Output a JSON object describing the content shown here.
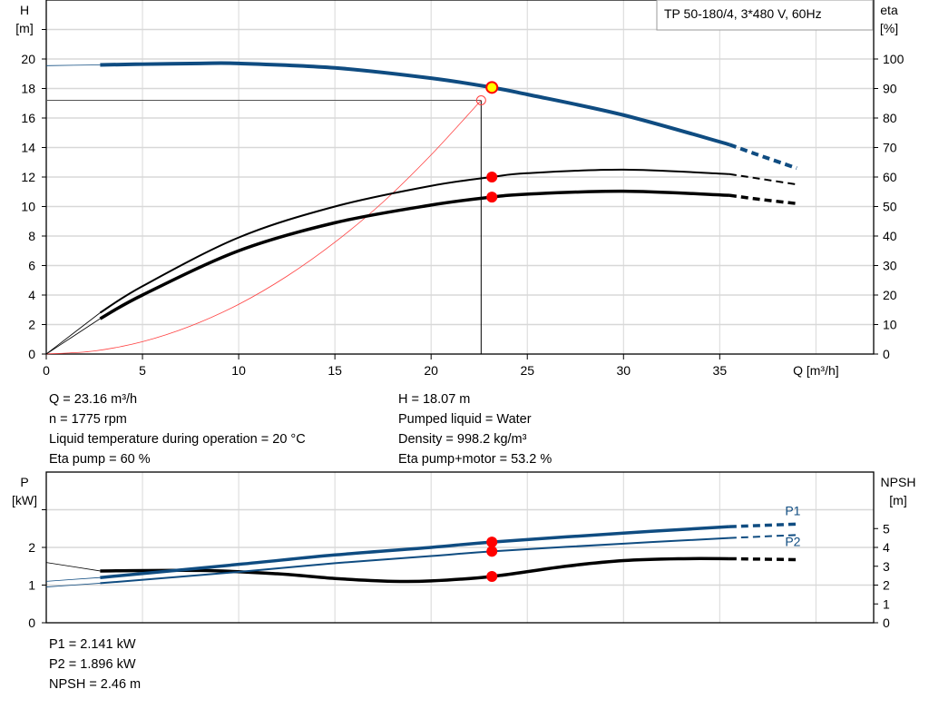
{
  "title": "TP 50-180/4, 3*480 V, 60Hz",
  "top_info_left": [
    "Q = 23.16 m³/h",
    "n = 1775 rpm",
    "Liquid temperature during operation = 20 °C",
    "Eta pump = 60 %"
  ],
  "top_info_right": [
    "H = 18.07 m",
    "Pumped liquid = Water",
    "Density = 998.2 kg/m³",
    "Eta pump+motor = 53.2 %"
  ],
  "bottom_info": [
    "P1 = 2.141 kW",
    "P2 = 1.896 kW",
    "NPSH = 2.46 m"
  ],
  "colors": {
    "head": "#0f4c81",
    "eta": "#000000",
    "system": "#ff4040",
    "duty_point": "#ff0000",
    "duty_point_fill": "#ffff00",
    "grid": "#d8d8d8"
  },
  "chart_data": [
    {
      "type": "line",
      "xlabel": "Q [m³/h]",
      "xlim": [
        0,
        43
      ],
      "xticks": [
        0,
        5,
        10,
        15,
        20,
        25,
        30,
        35
      ],
      "ylabel_left": "H",
      "yunit_left": "[m]",
      "ylim_left": [
        0,
        24
      ],
      "yticks_left": [
        0,
        2,
        4,
        6,
        8,
        10,
        12,
        14,
        16,
        18,
        20
      ],
      "ylabel_right": "eta",
      "yunit_right": "[%]",
      "ylim_right": [
        0,
        120
      ],
      "yticks_right": [
        0,
        10,
        20,
        30,
        40,
        50,
        60,
        70,
        80,
        90,
        100
      ],
      "grid": true,
      "series": [
        {
          "id": "head",
          "axis": "left",
          "x": [
            2.8,
            5,
            8,
            10,
            15,
            20,
            23.16,
            25,
            30,
            35.5
          ],
          "y": [
            19.6,
            19.65,
            19.7,
            19.7,
            19.4,
            18.7,
            18.07,
            17.6,
            16.2,
            14.2
          ],
          "dashed_x": [
            35.5,
            37,
            39
          ],
          "dashed_y": [
            14.2,
            13.5,
            12.6
          ],
          "lead_in": [
            [
              0,
              19.55
            ],
            [
              2.8,
              19.6
            ]
          ]
        },
        {
          "id": "eta_pump",
          "axis": "right",
          "x": [
            2.8,
            5,
            10,
            15,
            20,
            23.16,
            25,
            30,
            35.5
          ],
          "y": [
            14,
            23,
            39.5,
            50,
            57,
            60,
            61.3,
            62.5,
            61
          ],
          "dashed_x": [
            35.5,
            37,
            39
          ],
          "dashed_y": [
            61,
            59.5,
            57.5
          ],
          "lead_in": [
            [
              0,
              0
            ],
            [
              2.8,
              14
            ]
          ]
        },
        {
          "id": "eta_pump_motor",
          "axis": "right",
          "x": [
            2.8,
            5,
            10,
            15,
            20,
            23.16,
            25,
            30,
            35.5
          ],
          "y": [
            12,
            20,
            35,
            44.5,
            50.5,
            53.2,
            54.2,
            55.2,
            53.8
          ],
          "dashed_x": [
            35.5,
            37,
            39
          ],
          "dashed_y": [
            53.8,
            52.5,
            51
          ],
          "lead_in": [
            [
              0,
              0
            ],
            [
              2.8,
              12
            ]
          ]
        },
        {
          "id": "system_curve",
          "axis": "left",
          "x": [
            0,
            2.5,
            5,
            7.5,
            10,
            12.5,
            15,
            17.5,
            20,
            22.6
          ],
          "y": [
            0,
            0.21,
            0.84,
            1.9,
            3.37,
            5.27,
            7.58,
            10.3,
            13.5,
            17.2
          ]
        }
      ],
      "duty_point": {
        "Q": 23.16,
        "H": 18.07,
        "eta_pump": 60,
        "eta_pump_motor": 53.2
      },
      "required_point": {
        "Q": 22.6,
        "H": 17.2
      }
    },
    {
      "type": "line",
      "xlim": [
        0,
        43
      ],
      "ylabel_left": "P",
      "yunit_left": "[kW]",
      "ylim_left": [
        0,
        4
      ],
      "yticks_left": [
        0,
        1,
        2
      ],
      "ylabel_right": "NPSH",
      "yunit_right": "[m]",
      "ylim_right": [
        0,
        8
      ],
      "yticks_right": [
        0,
        1,
        2,
        3,
        4,
        5
      ],
      "grid": true,
      "series": [
        {
          "id": "P1",
          "name": "P1",
          "axis": "left",
          "x": [
            2.8,
            10,
            15,
            20,
            23.16,
            30,
            35.5
          ],
          "y": [
            1.2,
            1.55,
            1.8,
            2.0,
            2.141,
            2.38,
            2.55
          ],
          "dashed_x": [
            35.5,
            39
          ],
          "dashed_y": [
            2.55,
            2.62
          ],
          "lead_in": [
            [
              0,
              1.1
            ],
            [
              2.8,
              1.2
            ]
          ]
        },
        {
          "id": "P2",
          "name": "P2",
          "axis": "left",
          "x": [
            2.8,
            10,
            15,
            20,
            23.16,
            30,
            35.5
          ],
          "y": [
            1.05,
            1.35,
            1.58,
            1.77,
            1.896,
            2.1,
            2.25
          ],
          "dashed_x": [
            35.5,
            39
          ],
          "dashed_y": [
            2.25,
            2.33
          ],
          "lead_in": [
            [
              0,
              0.95
            ],
            [
              2.8,
              1.05
            ]
          ]
        },
        {
          "id": "NPSH",
          "axis": "right",
          "x": [
            2.8,
            8,
            12,
            15,
            18,
            20,
            23.16,
            27,
            30,
            33,
            35.5
          ],
          "y": [
            2.75,
            2.78,
            2.6,
            2.35,
            2.2,
            2.22,
            2.46,
            3.0,
            3.3,
            3.4,
            3.4
          ],
          "dashed_x": [
            35.5,
            39
          ],
          "dashed_y": [
            3.4,
            3.35
          ],
          "lead_in": [
            [
              0,
              3.2
            ],
            [
              2.8,
              2.75
            ]
          ]
        }
      ],
      "duty_point": {
        "Q": 23.16,
        "P1": 2.141,
        "P2": 1.896,
        "NPSH": 2.46
      }
    }
  ]
}
